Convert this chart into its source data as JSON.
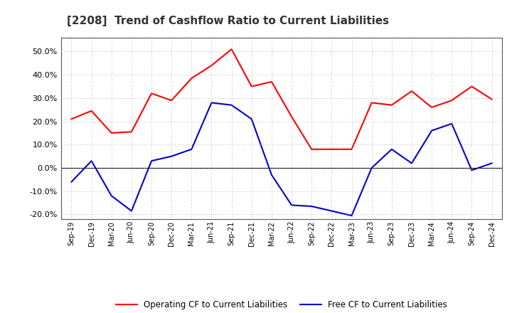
{
  "title": "[2208]  Trend of Cashflow Ratio to Current Liabilities",
  "x_labels": [
    "Sep-19",
    "Dec-19",
    "Mar-20",
    "Jun-20",
    "Sep-20",
    "Dec-20",
    "Mar-21",
    "Jun-21",
    "Sep-21",
    "Dec-21",
    "Mar-22",
    "Jun-22",
    "Sep-22",
    "Dec-22",
    "Mar-23",
    "Jun-23",
    "Sep-23",
    "Dec-23",
    "Mar-24",
    "Jun-24",
    "Sep-24",
    "Dec-24"
  ],
  "operating_cf": [
    0.21,
    0.245,
    0.15,
    0.155,
    0.32,
    0.29,
    0.385,
    0.44,
    0.51,
    0.35,
    0.37,
    0.22,
    0.08,
    0.08,
    0.08,
    0.28,
    0.27,
    0.33,
    0.26,
    0.29,
    0.35,
    0.295
  ],
  "free_cf": [
    -0.06,
    0.03,
    -0.12,
    -0.185,
    0.03,
    0.05,
    0.08,
    0.28,
    0.27,
    0.21,
    -0.03,
    -0.16,
    -0.165,
    -0.185,
    -0.205,
    0.0,
    0.08,
    0.02,
    0.16,
    0.19,
    -0.01,
    0.02
  ],
  "operating_color": "#FF0000",
  "free_color": "#0000CC",
  "ylim": [
    -0.22,
    0.56
  ],
  "yticks": [
    -0.2,
    -0.1,
    0.0,
    0.1,
    0.2,
    0.3,
    0.4,
    0.5
  ],
  "background_color": "#FFFFFF",
  "grid_color": "#999999",
  "title_fontsize": 11,
  "legend_operating": "Operating CF to Current Liabilities",
  "legend_free": "Free CF to Current Liabilities"
}
